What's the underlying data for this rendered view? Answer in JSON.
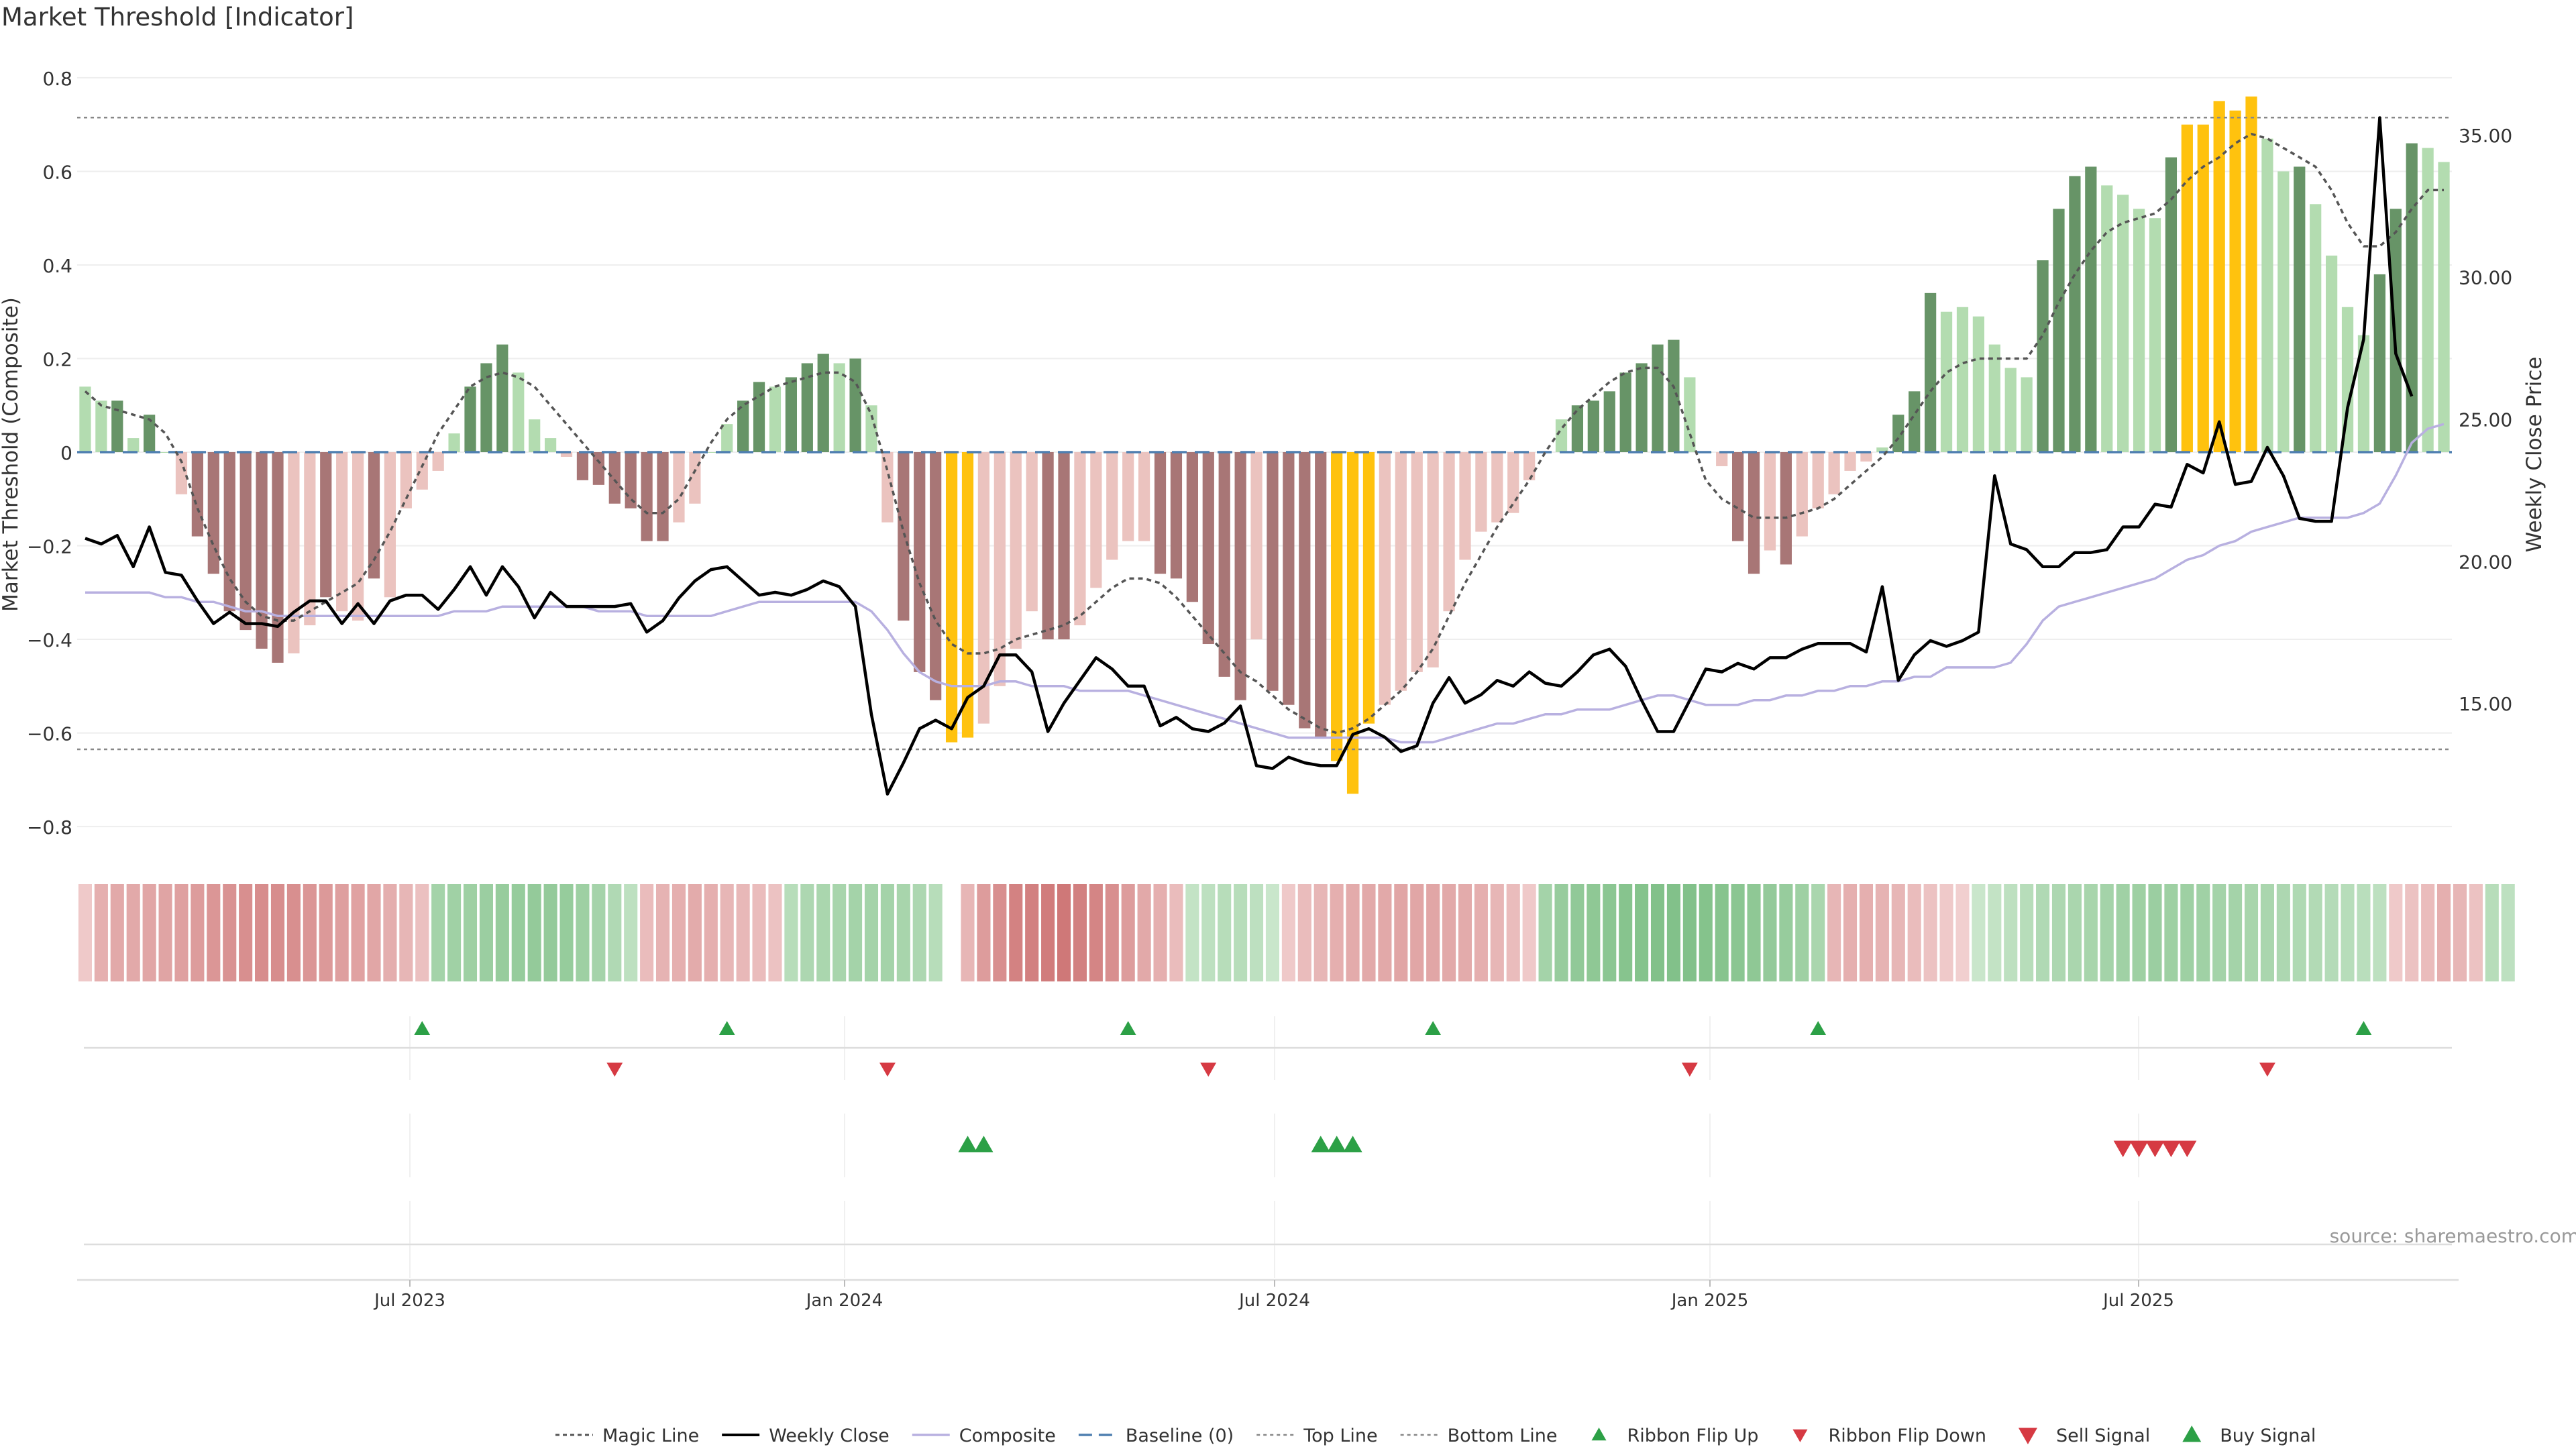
{
  "title": "Market Threshold [Indicator]",
  "source": "source: sharemaestro.com",
  "colors": {
    "strong_pos": "#679467",
    "weak_pos": "#b3dcb0",
    "strong_neg": "#a87676",
    "weak_neg": "#ebc3bf",
    "extreme": "#ffc20e",
    "close": "#000000",
    "composite": "#b8b0e0",
    "magic": "#555555",
    "baseline": "#4f7fb0",
    "buy": "#2ca046",
    "sell": "#d63a43"
  },
  "legend": [
    "Magic Line",
    "Weekly Close",
    "Composite",
    "Baseline (0)",
    "Top Line",
    "Bottom Line",
    "Ribbon Flip Up",
    "Ribbon Flip Down",
    "Sell Signal",
    "Buy Signal"
  ],
  "chart_data": {
    "type": "bar",
    "ylabel": "Market Threshold (Composite)",
    "y2label": "Weekly Close Price",
    "ylim": [
      -0.84,
      0.83
    ],
    "y2lim": [
      10.0,
      37.5
    ],
    "yticks": [
      "0.8",
      "0.6",
      "0.4",
      "0.2",
      "0",
      "−0.2",
      "−0.4",
      "−0.6",
      "−0.8"
    ],
    "y2ticks": [
      "35.00",
      "30.00",
      "25.00",
      "20.00",
      "15.00"
    ],
    "xticks": [
      "Jul 2023",
      "Jan 2024",
      "Jul 2024",
      "Jan 2025",
      "Jul 2025"
    ],
    "top_line": 0.715,
    "bottom_line": -0.635,
    "bars": [
      0.14,
      0.11,
      0.11,
      0.03,
      0.08,
      0.0,
      -0.09,
      -0.18,
      -0.26,
      -0.34,
      -0.38,
      -0.42,
      -0.45,
      -0.43,
      -0.37,
      -0.31,
      -0.34,
      -0.36,
      -0.27,
      -0.31,
      -0.12,
      -0.08,
      -0.04,
      0.04,
      0.14,
      0.19,
      0.23,
      0.17,
      0.07,
      0.03,
      -0.01,
      -0.06,
      -0.07,
      -0.11,
      -0.12,
      -0.19,
      -0.19,
      -0.15,
      -0.11,
      0.0,
      0.06,
      0.11,
      0.15,
      0.14,
      0.16,
      0.19,
      0.21,
      0.19,
      0.2,
      0.1,
      -0.15,
      -0.36,
      -0.47,
      -0.53,
      -0.62,
      -0.61,
      -0.58,
      -0.5,
      -0.42,
      -0.34,
      -0.4,
      -0.4,
      -0.37,
      -0.29,
      -0.23,
      -0.19,
      -0.19,
      -0.26,
      -0.27,
      -0.32,
      -0.41,
      -0.48,
      -0.53,
      -0.4,
      -0.51,
      -0.54,
      -0.59,
      -0.61,
      -0.66,
      -0.73,
      -0.58,
      -0.54,
      -0.51,
      -0.47,
      -0.46,
      -0.34,
      -0.23,
      -0.17,
      -0.15,
      -0.13,
      -0.06,
      0.0,
      0.07,
      0.1,
      0.11,
      0.13,
      0.17,
      0.19,
      0.23,
      0.24,
      0.16,
      0.0,
      -0.03,
      -0.19,
      -0.26,
      -0.21,
      -0.24,
      -0.18,
      -0.12,
      -0.09,
      -0.04,
      -0.02,
      0.01,
      0.08,
      0.13,
      0.34,
      0.3,
      0.31,
      0.29,
      0.23,
      0.18,
      0.16,
      0.41,
      0.52,
      0.59,
      0.61,
      0.57,
      0.55,
      0.52,
      0.5,
      0.63,
      0.7,
      0.7,
      0.75,
      0.73,
      0.76,
      0.67,
      0.6,
      0.61,
      0.53,
      0.42,
      0.31,
      0.25,
      0.38,
      0.52,
      0.66,
      0.65,
      0.62
    ],
    "bar_types": [
      "wp",
      "wp",
      "sp",
      "wp",
      "sp",
      "wp",
      "wn",
      "sn",
      "sn",
      "sn",
      "sn",
      "sn",
      "sn",
      "wn",
      "wn",
      "sn",
      "wn",
      "wn",
      "sn",
      "wn",
      "wn",
      "wn",
      "wn",
      "wp",
      "sp",
      "sp",
      "sp",
      "wp",
      "wp",
      "wp",
      "wn",
      "sn",
      "sn",
      "sn",
      "sn",
      "sn",
      "sn",
      "wn",
      "wn",
      "wp",
      "wp",
      "sp",
      "sp",
      "wp",
      "sp",
      "sp",
      "sp",
      "wp",
      "sp",
      "wp",
      "wn",
      "sn",
      "sn",
      "sn",
      "ex",
      "ex",
      "wn",
      "wn",
      "wn",
      "wn",
      "sn",
      "sn",
      "wn",
      "wn",
      "wn",
      "wn",
      "wn",
      "sn",
      "sn",
      "sn",
      "sn",
      "sn",
      "sn",
      "wn",
      "sn",
      "sn",
      "sn",
      "sn",
      "ex",
      "ex",
      "ex",
      "wn",
      "wn",
      "wn",
      "wn",
      "wn",
      "wn",
      "wn",
      "wn",
      "wn",
      "wn",
      "wp",
      "wp",
      "sp",
      "sp",
      "sp",
      "sp",
      "sp",
      "sp",
      "sp",
      "wp",
      "wp",
      "wn",
      "sn",
      "sn",
      "wn",
      "sn",
      "wn",
      "wn",
      "wn",
      "wn",
      "wn",
      "wp",
      "sp",
      "sp",
      "sp",
      "wp",
      "wp",
      "wp",
      "wp",
      "wp",
      "wp",
      "sp",
      "sp",
      "sp",
      "sp",
      "wp",
      "wp",
      "wp",
      "wp",
      "sp",
      "ex",
      "ex",
      "ex",
      "ex",
      "ex",
      "wp",
      "wp",
      "sp",
      "wp",
      "wp",
      "wp",
      "wp",
      "sp",
      "sp",
      "sp",
      "wp",
      "wp"
    ],
    "magic_line": [
      0.13,
      0.1,
      0.09,
      0.08,
      0.07,
      0.04,
      -0.02,
      -0.12,
      -0.2,
      -0.27,
      -0.32,
      -0.35,
      -0.36,
      -0.36,
      -0.34,
      -0.32,
      -0.3,
      -0.28,
      -0.23,
      -0.17,
      -0.1,
      -0.03,
      0.04,
      0.09,
      0.14,
      0.16,
      0.17,
      0.16,
      0.14,
      0.1,
      0.06,
      0.02,
      -0.02,
      -0.06,
      -0.1,
      -0.13,
      -0.13,
      -0.1,
      -0.04,
      0.02,
      0.07,
      0.1,
      0.12,
      0.14,
      0.15,
      0.16,
      0.17,
      0.17,
      0.15,
      0.08,
      -0.04,
      -0.17,
      -0.28,
      -0.36,
      -0.41,
      -0.43,
      -0.43,
      -0.42,
      -0.4,
      -0.39,
      -0.38,
      -0.37,
      -0.35,
      -0.32,
      -0.29,
      -0.27,
      -0.27,
      -0.28,
      -0.31,
      -0.35,
      -0.39,
      -0.43,
      -0.47,
      -0.49,
      -0.52,
      -0.55,
      -0.57,
      -0.59,
      -0.6,
      -0.59,
      -0.57,
      -0.54,
      -0.51,
      -0.47,
      -0.42,
      -0.35,
      -0.28,
      -0.22,
      -0.16,
      -0.11,
      -0.06,
      0.0,
      0.05,
      0.09,
      0.12,
      0.15,
      0.17,
      0.18,
      0.18,
      0.14,
      0.04,
      -0.06,
      -0.1,
      -0.12,
      -0.14,
      -0.14,
      -0.14,
      -0.13,
      -0.12,
      -0.1,
      -0.07,
      -0.04,
      -0.01,
      0.03,
      0.08,
      0.13,
      0.17,
      0.19,
      0.2,
      0.2,
      0.2,
      0.2,
      0.25,
      0.32,
      0.38,
      0.43,
      0.47,
      0.49,
      0.5,
      0.51,
      0.54,
      0.58,
      0.61,
      0.63,
      0.66,
      0.68,
      0.67,
      0.65,
      0.63,
      0.61,
      0.56,
      0.49,
      0.44,
      0.44,
      0.47,
      0.52,
      0.56,
      0.56
    ],
    "weekly_close": [
      20.8,
      20.6,
      20.9,
      19.8,
      21.2,
      19.6,
      19.5,
      18.6,
      17.8,
      18.2,
      17.8,
      17.8,
      17.7,
      18.2,
      18.6,
      18.6,
      17.8,
      18.5,
      17.8,
      18.6,
      18.8,
      18.8,
      18.3,
      19.0,
      19.8,
      18.8,
      19.8,
      19.1,
      18.0,
      18.9,
      18.4,
      18.4,
      18.4,
      18.4,
      18.5,
      17.5,
      17.9,
      18.7,
      19.3,
      19.7,
      19.8,
      19.3,
      18.8,
      18.9,
      18.8,
      19.0,
      19.3,
      19.1,
      18.4,
      14.6,
      11.8,
      12.9,
      14.1,
      14.4,
      14.1,
      15.2,
      15.6,
      16.7,
      16.7,
      16.1,
      14.0,
      15.0,
      15.8,
      16.6,
      16.2,
      15.6,
      15.6,
      14.2,
      14.5,
      14.1,
      14.0,
      14.3,
      14.9,
      12.8,
      12.7,
      13.1,
      12.9,
      12.8,
      12.8,
      13.9,
      14.1,
      13.8,
      13.3,
      13.5,
      15.0,
      15.9,
      15.0,
      15.3,
      15.8,
      15.6,
      16.1,
      15.7,
      15.6,
      16.1,
      16.7,
      16.9,
      16.3,
      15.1,
      14.0,
      14.0,
      15.1,
      16.2,
      16.1,
      16.4,
      16.2,
      16.6,
      16.6,
      16.9,
      17.1,
      17.1,
      17.1,
      16.8,
      19.1,
      15.8,
      16.7,
      17.2,
      17.0,
      17.2,
      17.5,
      23.0,
      20.6,
      20.4,
      19.8,
      19.8,
      20.3,
      20.3,
      20.4,
      21.2,
      21.2,
      22.0,
      21.9,
      23.4,
      23.1,
      24.9,
      22.7,
      22.8,
      24.0,
      23.0,
      21.5,
      21.4,
      21.4,
      25.4,
      27.8,
      35.6,
      27.3,
      25.8
    ],
    "composite_line": [
      -0.3,
      -0.3,
      -0.3,
      -0.3,
      -0.3,
      -0.31,
      -0.31,
      -0.32,
      -0.32,
      -0.33,
      -0.34,
      -0.34,
      -0.35,
      -0.35,
      -0.35,
      -0.35,
      -0.35,
      -0.35,
      -0.35,
      -0.35,
      -0.35,
      -0.35,
      -0.35,
      -0.34,
      -0.34,
      -0.34,
      -0.33,
      -0.33,
      -0.33,
      -0.33,
      -0.33,
      -0.33,
      -0.34,
      -0.34,
      -0.34,
      -0.35,
      -0.35,
      -0.35,
      -0.35,
      -0.35,
      -0.34,
      -0.33,
      -0.32,
      -0.32,
      -0.32,
      -0.32,
      -0.32,
      -0.32,
      -0.32,
      -0.34,
      -0.38,
      -0.43,
      -0.47,
      -0.49,
      -0.5,
      -0.5,
      -0.5,
      -0.49,
      -0.49,
      -0.5,
      -0.5,
      -0.5,
      -0.51,
      -0.51,
      -0.51,
      -0.51,
      -0.52,
      -0.53,
      -0.54,
      -0.55,
      -0.56,
      -0.57,
      -0.58,
      -0.59,
      -0.6,
      -0.61,
      -0.61,
      -0.61,
      -0.61,
      -0.61,
      -0.61,
      -0.61,
      -0.62,
      -0.62,
      -0.62,
      -0.61,
      -0.6,
      -0.59,
      -0.58,
      -0.58,
      -0.57,
      -0.56,
      -0.56,
      -0.55,
      -0.55,
      -0.55,
      -0.54,
      -0.53,
      -0.52,
      -0.52,
      -0.53,
      -0.54,
      -0.54,
      -0.54,
      -0.53,
      -0.53,
      -0.52,
      -0.52,
      -0.51,
      -0.51,
      -0.5,
      -0.5,
      -0.49,
      -0.49,
      -0.48,
      -0.48,
      -0.46,
      -0.46,
      -0.46,
      -0.46,
      -0.45,
      -0.41,
      -0.36,
      -0.33,
      -0.32,
      -0.31,
      -0.3,
      -0.29,
      -0.28,
      -0.27,
      -0.25,
      -0.23,
      -0.22,
      -0.2,
      -0.19,
      -0.17,
      -0.16,
      -0.15,
      -0.14,
      -0.14,
      -0.14,
      -0.14,
      -0.13,
      -0.11,
      -0.05,
      0.02,
      0.05,
      0.06
    ],
    "ribbon": [
      -0.15,
      -0.35,
      -0.4,
      -0.4,
      -0.42,
      -0.44,
      -0.47,
      -0.5,
      -0.55,
      -0.58,
      -0.6,
      -0.62,
      -0.62,
      -0.6,
      -0.55,
      -0.52,
      -0.48,
      -0.45,
      -0.42,
      -0.36,
      -0.3,
      -0.22,
      0.45,
      0.48,
      0.5,
      0.52,
      0.55,
      0.56,
      0.58,
      0.58,
      0.56,
      0.5,
      0.44,
      0.35,
      0.25,
      -0.25,
      -0.32,
      -0.35,
      -0.38,
      -0.35,
      -0.3,
      -0.28,
      -0.25,
      -0.2,
      0.3,
      0.38,
      0.4,
      0.42,
      0.45,
      0.45,
      0.45,
      0.42,
      0.38,
      0.3,
      null,
      -0.3,
      -0.5,
      -0.6,
      -0.7,
      -0.72,
      -0.75,
      -0.78,
      -0.72,
      -0.68,
      -0.6,
      -0.5,
      -0.4,
      -0.35,
      -0.25,
      0.2,
      0.25,
      0.3,
      0.3,
      0.25,
      0.15,
      -0.15,
      -0.25,
      -0.3,
      -0.35,
      -0.38,
      -0.4,
      -0.4,
      -0.42,
      -0.42,
      -0.42,
      -0.4,
      -0.38,
      -0.35,
      -0.3,
      -0.25,
      -0.15,
      0.45,
      0.55,
      0.6,
      0.62,
      0.65,
      0.68,
      0.7,
      0.72,
      0.72,
      0.72,
      0.7,
      0.68,
      0.65,
      0.62,
      0.58,
      0.55,
      0.5,
      0.4,
      -0.3,
      -0.35,
      -0.35,
      -0.32,
      -0.3,
      -0.25,
      -0.2,
      -0.15,
      -0.1,
      0.15,
      0.2,
      0.25,
      0.3,
      0.35,
      0.38,
      0.4,
      0.42,
      0.45,
      0.48,
      0.5,
      0.52,
      0.5,
      0.5,
      0.48,
      0.45,
      0.45,
      0.42,
      0.4,
      0.38,
      0.36,
      0.34,
      0.32,
      0.3,
      0.28,
      0.25,
      -0.15,
      -0.2,
      -0.25,
      -0.35,
      -0.3,
      -0.2,
      0.3,
      0.25
    ],
    "ribbon_flip_up": [
      21,
      40,
      65,
      84,
      108,
      142
    ],
    "ribbon_flip_down": [
      33,
      50,
      70,
      100,
      136
    ],
    "buy_signals": [
      55,
      56,
      77,
      78,
      79
    ],
    "sell_signals": [
      127,
      128,
      129,
      130,
      131
    ]
  }
}
